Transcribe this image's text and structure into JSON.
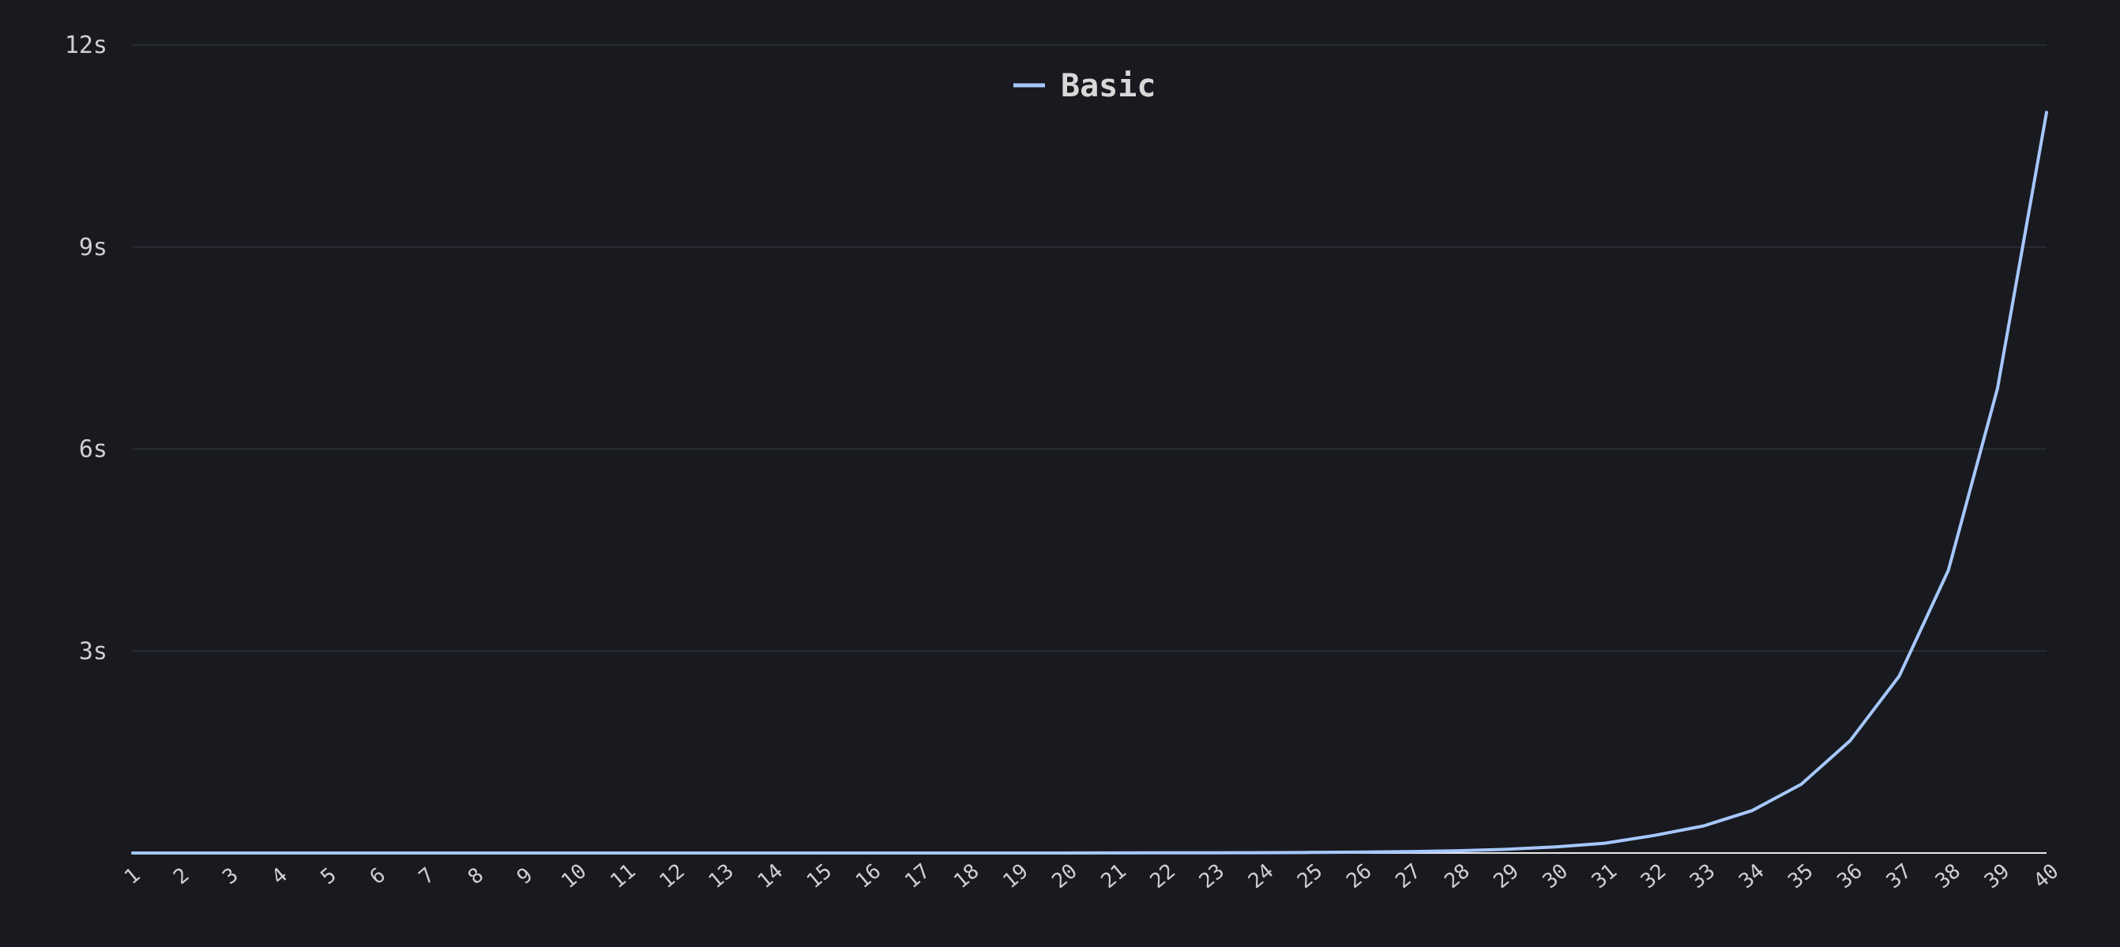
{
  "chart_data": {
    "type": "line",
    "title": "",
    "xlabel": "",
    "ylabel": "",
    "categories": [
      "1",
      "2",
      "3",
      "4",
      "5",
      "6",
      "7",
      "8",
      "9",
      "10",
      "11",
      "12",
      "13",
      "14",
      "15",
      "16",
      "17",
      "18",
      "19",
      "20",
      "21",
      "22",
      "23",
      "24",
      "25",
      "26",
      "27",
      "28",
      "29",
      "30",
      "31",
      "32",
      "33",
      "34",
      "35",
      "36",
      "37",
      "38",
      "39",
      "40"
    ],
    "y_ticks": [
      3,
      6,
      9,
      12
    ],
    "y_tick_labels": [
      "3s",
      "6s",
      "9s",
      "12s"
    ],
    "ylim": [
      0,
      12
    ],
    "grid": true,
    "legend_position": "top-center",
    "series": [
      {
        "name": "Basic",
        "color": "#a6c8ff",
        "values": [
          0,
          0,
          0,
          0,
          0,
          0,
          0,
          0,
          0,
          0,
          0,
          0,
          0,
          0,
          0,
          0,
          0,
          0,
          0,
          0,
          0.001,
          0.002,
          0.003,
          0.005,
          0.008,
          0.013,
          0.021,
          0.034,
          0.055,
          0.09,
          0.145,
          0.26,
          0.4,
          0.63,
          1.02,
          1.67,
          2.63,
          4.2,
          6.9,
          11.0
        ]
      }
    ]
  },
  "colors": {
    "background": "#191a1f",
    "grid": "#2e3038",
    "axis": "#e8e8e8",
    "tick_text": "#d0d0d0",
    "legend_text": "#d8d8d8"
  }
}
